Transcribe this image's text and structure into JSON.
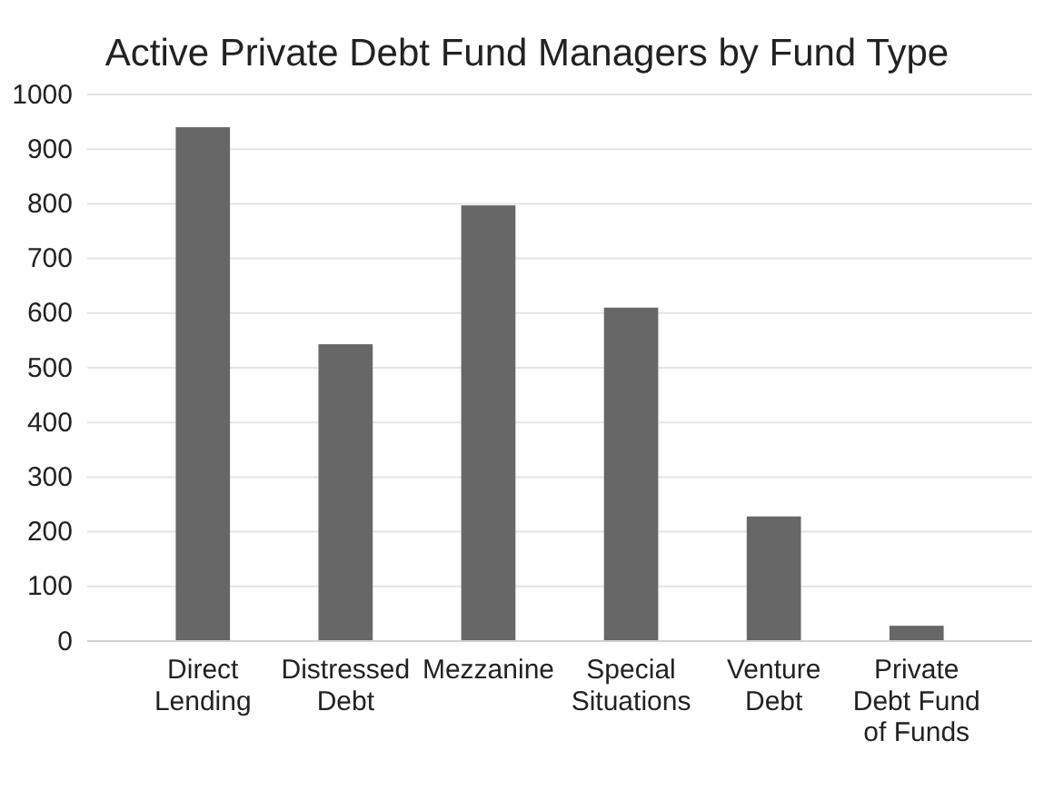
{
  "chart_data": {
    "type": "bar",
    "title": "Active Private Debt Fund Managers by Fund Type",
    "categories": [
      "Direct Lending",
      "Distressed Debt",
      "Mezzanine",
      "Special Situations",
      "Venture Debt",
      "Private Debt Fund of Funds"
    ],
    "values": [
      940,
      543,
      797,
      610,
      228,
      28
    ],
    "color": "#686767",
    "ylim": [
      0,
      1000
    ],
    "yticks": [
      0,
      100,
      200,
      300,
      400,
      500,
      600,
      700,
      800,
      900,
      1000
    ],
    "grid": "y"
  }
}
